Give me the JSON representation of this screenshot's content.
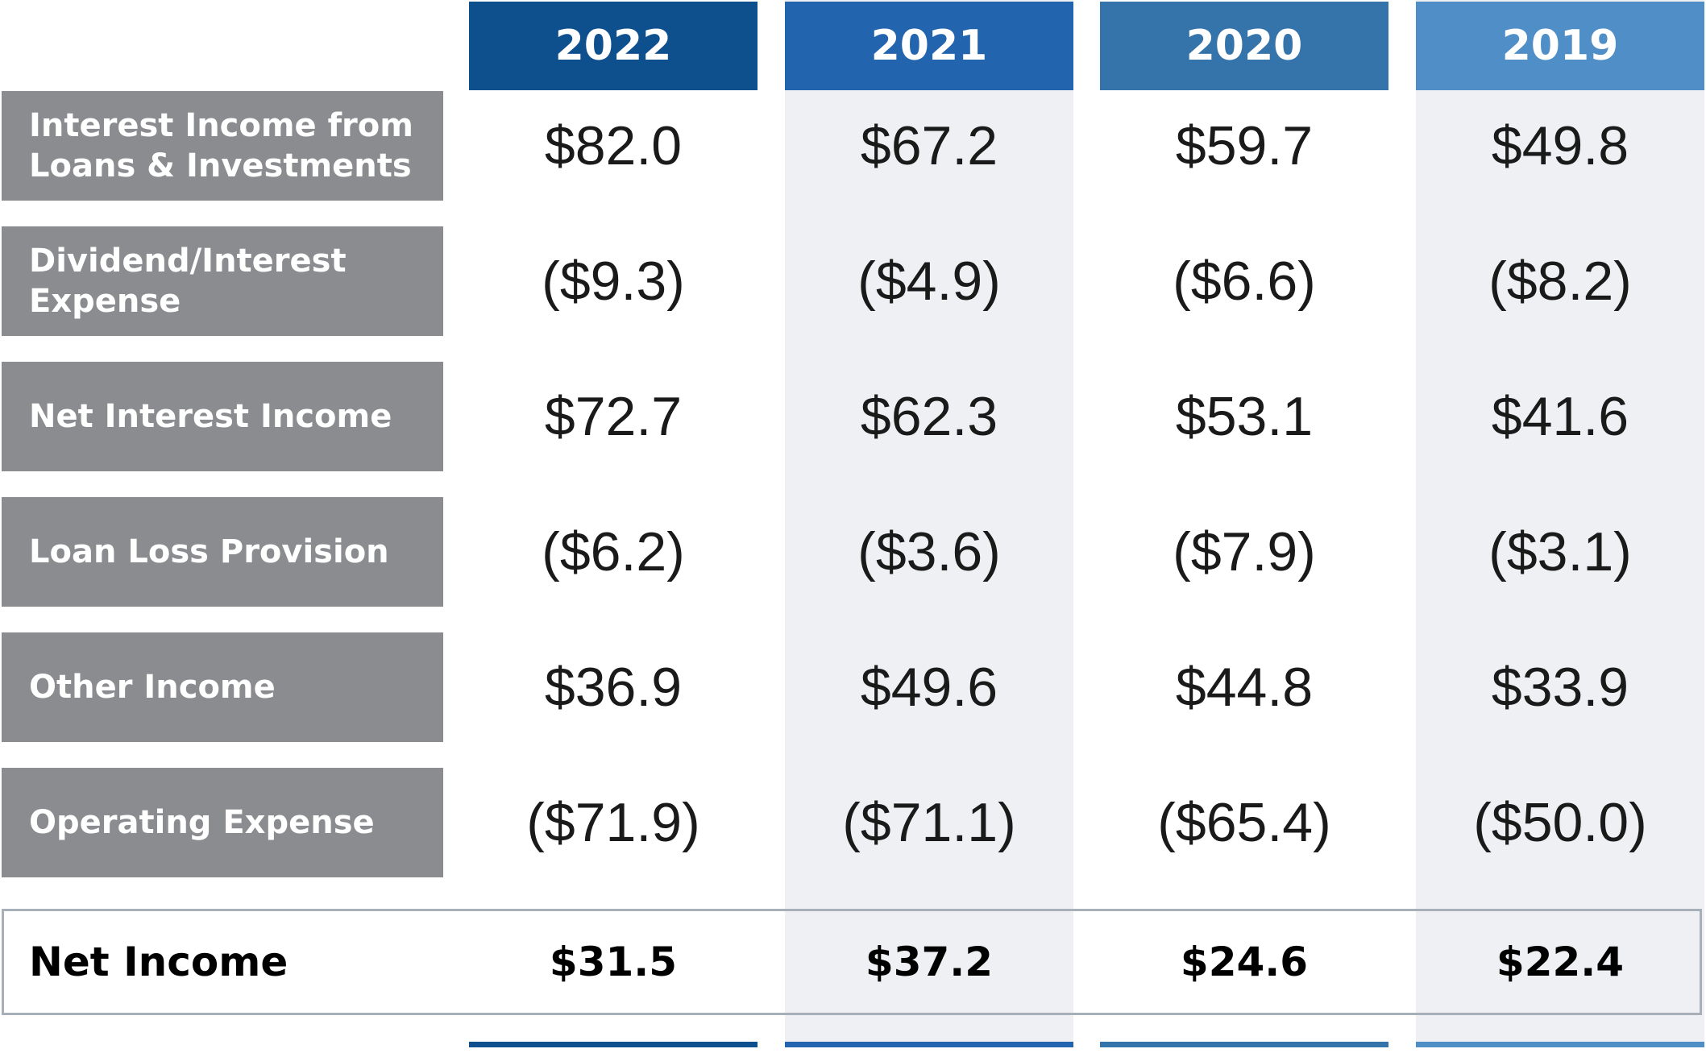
{
  "chart_data": {
    "type": "table",
    "columns": [
      "2022",
      "2021",
      "2020",
      "2019"
    ],
    "column_colors": [
      "#0e4f8e",
      "#2264ad",
      "#3574ab",
      "#4f8ec6"
    ],
    "rows": [
      {
        "label": "Interest Income from\nLoans & Investments",
        "values": [
          "$82.0",
          "$67.2",
          "$59.7",
          "$49.8"
        ]
      },
      {
        "label": "Dividend/Interest\nExpense",
        "values": [
          "($9.3)",
          "($4.9)",
          "($6.6)",
          "($8.2)"
        ]
      },
      {
        "label": "Net Interest Income",
        "values": [
          "$72.7",
          "$62.3",
          "$53.1",
          "$41.6"
        ]
      },
      {
        "label": "Loan Loss Provision",
        "values": [
          "($6.2)",
          "($3.6)",
          "($7.9)",
          "($3.1)"
        ]
      },
      {
        "label": "Other Income",
        "values": [
          "$36.9",
          "$49.6",
          "$44.8",
          "$33.9"
        ]
      },
      {
        "label": "Operating Expense",
        "values": [
          "($71.9)",
          "($71.1)",
          "($65.4)",
          "($50.0)"
        ]
      }
    ],
    "total_row": {
      "label": "Net Income",
      "values": [
        "$31.5",
        "$37.2",
        "$24.6",
        "$22.4"
      ]
    }
  }
}
